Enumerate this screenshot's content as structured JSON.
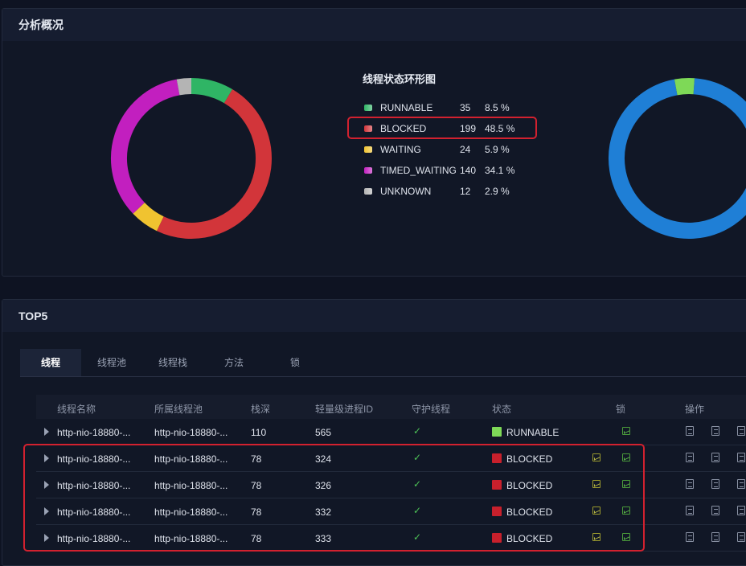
{
  "analysis": {
    "title": "分析概况",
    "chart_data": [
      {
        "type": "pie",
        "title": "线程状态环形图",
        "categories": [
          "RUNNABLE",
          "BLOCKED",
          "WAITING",
          "TIMED_WAITING",
          "UNKNOWN"
        ],
        "values": [
          35,
          199,
          24,
          140,
          12
        ],
        "percent_labels": [
          "8.5 %",
          "48.5 %",
          "5.9 %",
          "34.1 %",
          "2.9 %"
        ],
        "colors": [
          "#2fb565",
          "#d2353a",
          "#f0c330",
          "#c21fbf",
          "#b4b4b4"
        ],
        "highlighted": "BLOCKED",
        "legend_position": "right"
      },
      {
        "type": "pie",
        "values": [
          96,
          4
        ],
        "colors": [
          "#1f7fd6",
          "#7ed957"
        ]
      }
    ]
  },
  "top5": {
    "title": "TOP5",
    "tabs": [
      "线程",
      "线程池",
      "线程栈",
      "方法",
      "锁"
    ],
    "active_tab": "线程",
    "columns": [
      "线程名称",
      "所属线程池",
      "栈深",
      "轻量级进程ID",
      "守护线程",
      "状态",
      "锁",
      "操作"
    ],
    "rows": [
      {
        "name": "http-nio-18880-...",
        "pool": "http-nio-18880-...",
        "depth": "110",
        "lwp": "565",
        "daemon": "✓",
        "status": "RUNNABLE",
        "status_color": "#7ed957",
        "blocked_lock": false
      },
      {
        "name": "http-nio-18880-...",
        "pool": "http-nio-18880-...",
        "depth": "78",
        "lwp": "324",
        "daemon": "✓",
        "status": "BLOCKED",
        "status_color": "#c8202c",
        "blocked_lock": true
      },
      {
        "name": "http-nio-18880-...",
        "pool": "http-nio-18880-...",
        "depth": "78",
        "lwp": "326",
        "daemon": "✓",
        "status": "BLOCKED",
        "status_color": "#c8202c",
        "blocked_lock": true
      },
      {
        "name": "http-nio-18880-...",
        "pool": "http-nio-18880-...",
        "depth": "78",
        "lwp": "332",
        "daemon": "✓",
        "status": "BLOCKED",
        "status_color": "#c8202c",
        "blocked_lock": true
      },
      {
        "name": "http-nio-18880-...",
        "pool": "http-nio-18880-...",
        "depth": "78",
        "lwp": "333",
        "daemon": "✓",
        "status": "BLOCKED",
        "status_color": "#c8202c",
        "blocked_lock": true
      }
    ],
    "row_action_icons": [
      "detail-icon",
      "list-icon",
      "stack-icon"
    ],
    "highlighted_rows": [
      1,
      2,
      3,
      4
    ]
  }
}
